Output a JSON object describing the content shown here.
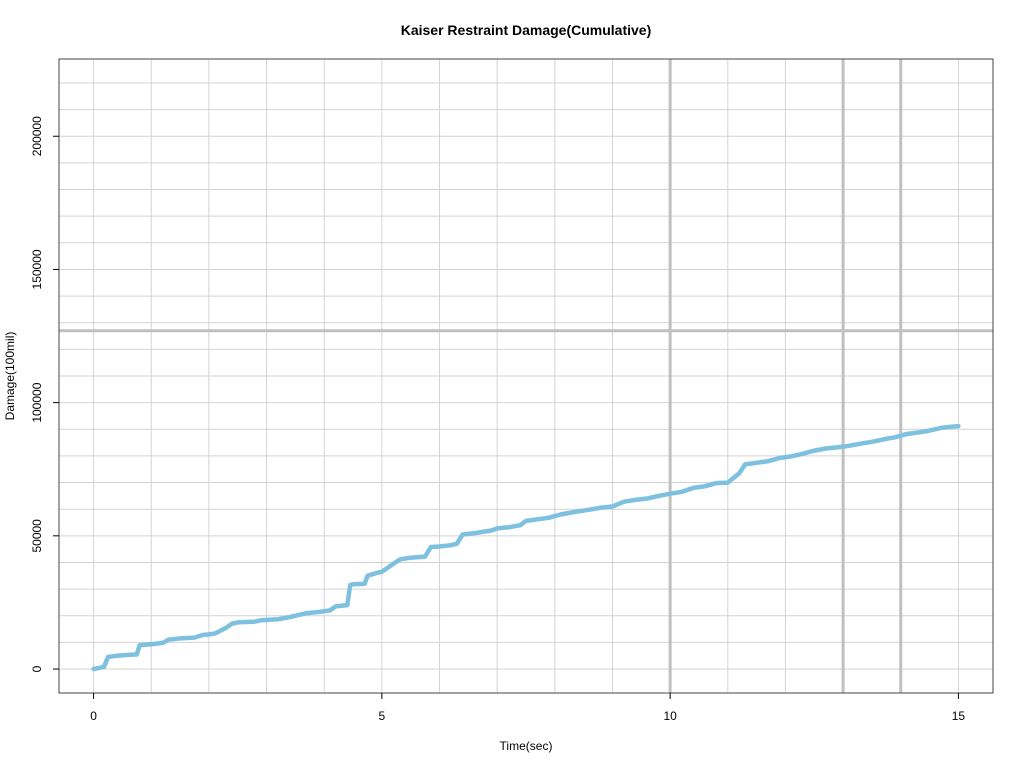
{
  "chart_data": {
    "type": "line",
    "title": "Kaiser Restraint Damage(Cumulative)",
    "xlabel": "Time(sec)",
    "ylabel": "Damage(100mil)",
    "xlim": [
      -0.6,
      15.6
    ],
    "ylim": [
      -9000,
      229000
    ],
    "x_ticks": [
      0,
      5,
      10,
      15
    ],
    "x_tick_labels": [
      "0",
      "5",
      "10",
      "15"
    ],
    "y_ticks": [
      0,
      50000,
      100000,
      150000,
      200000
    ],
    "y_tick_labels": [
      "0",
      "50000",
      "100000",
      "150000",
      "200000"
    ],
    "grid": true,
    "minor_grid_x": [
      0,
      1,
      2,
      3,
      4,
      5,
      6,
      7,
      8,
      9,
      10,
      11,
      12,
      13,
      14,
      15
    ],
    "minor_grid_y": [
      0,
      10000,
      20000,
      30000,
      40000,
      50000,
      60000,
      70000,
      80000,
      90000,
      100000,
      110000,
      120000,
      130000,
      140000,
      150000,
      160000,
      170000,
      180000,
      190000,
      200000,
      210000,
      220000
    ],
    "highlight_x": [
      10,
      13,
      14
    ],
    "highlight_y": [
      127000
    ],
    "line_color": "#7ec0e0",
    "series": [
      {
        "x": [
          0,
          0.18,
          0.25,
          0.4,
          0.6,
          0.75,
          0.8,
          1.0,
          1.2,
          1.3,
          1.5,
          1.75,
          1.9,
          2.0,
          2.1,
          2.3,
          2.4,
          2.5,
          2.8,
          2.9,
          3.2,
          3.4,
          3.6,
          3.7,
          3.9,
          4.1,
          4.2,
          4.4,
          4.45,
          4.5,
          4.7,
          4.75,
          4.9,
          5.0,
          5.3,
          5.35,
          5.5,
          5.75,
          5.85,
          6.0,
          6.2,
          6.3,
          6.4,
          6.6,
          6.9,
          7.0,
          7.2,
          7.4,
          7.5,
          7.7,
          7.9,
          8.1,
          8.3,
          8.6,
          8.8,
          9.0,
          9.2,
          9.4,
          9.6,
          9.8,
          10.0,
          10.2,
          10.4,
          10.6,
          10.8,
          11.0,
          11.2,
          11.3,
          11.5,
          11.7,
          11.9,
          12.1,
          12.3,
          12.5,
          12.7,
          12.9,
          13.1,
          13.3,
          13.5,
          13.7,
          13.9,
          14.1,
          14.3,
          14.5,
          14.7,
          14.9,
          15.0
        ],
        "y": [
          0,
          800,
          4500,
          5000,
          5300,
          5500,
          9000,
          9300,
          9800,
          11000,
          11500,
          11800,
          12800,
          13000,
          13300,
          15500,
          17000,
          17500,
          17800,
          18300,
          18700,
          19500,
          20500,
          21000,
          21400,
          22000,
          23500,
          24000,
          31500,
          31800,
          32000,
          35000,
          36000,
          36500,
          41000,
          41300,
          41800,
          42200,
          45800,
          46000,
          46500,
          47000,
          50500,
          51000,
          52000,
          52800,
          53200,
          54000,
          55600,
          56200,
          56800,
          58000,
          58800,
          59800,
          60600,
          61000,
          62800,
          63500,
          64000,
          65000,
          65800,
          66500,
          68000,
          68600,
          69800,
          70000,
          73500,
          76800,
          77400,
          78000,
          79200,
          79800,
          80800,
          82000,
          82800,
          83200,
          83800,
          84600,
          85300,
          86200,
          87000,
          88200,
          88800,
          89500,
          90500,
          91000,
          91200
        ]
      }
    ]
  }
}
